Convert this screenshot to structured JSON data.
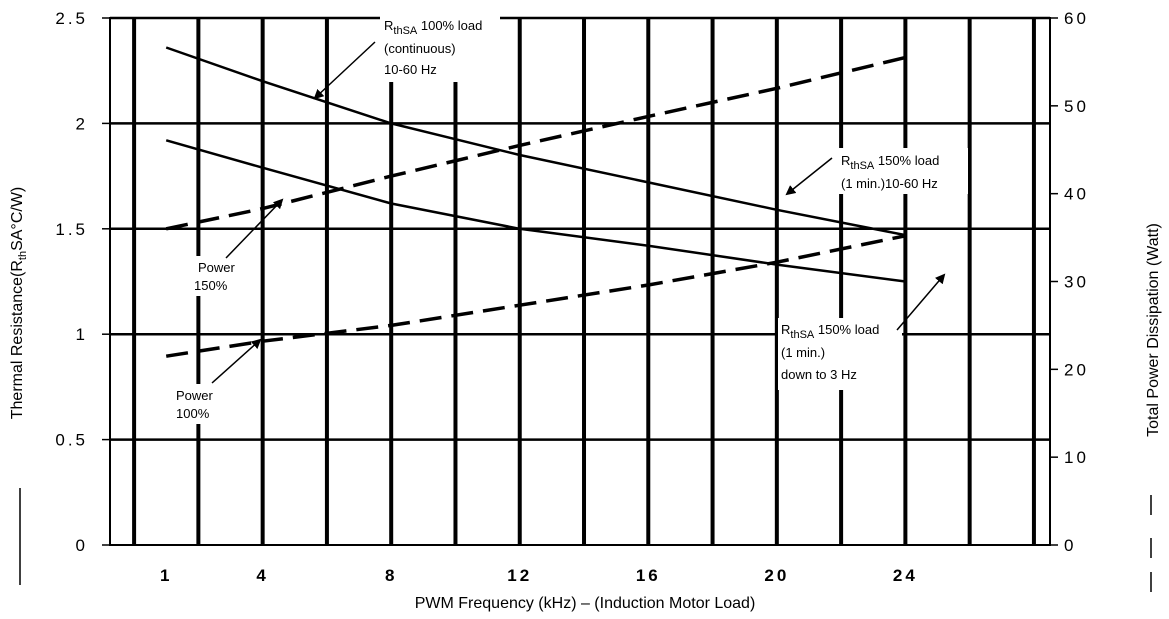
{
  "chart_data": {
    "type": "line",
    "xlabel": "PWM Frequency (kHz) – (Induction Motor Load)",
    "ylabel_left_main": "Thermal Resistance(R",
    "ylabel_left_sub": "th",
    "ylabel_left_tail": "SA°C/W)",
    "ylabel_right": "Total Power Dissipation (Watt)",
    "x_ticks": [
      "1",
      "4",
      "8",
      "12",
      "16",
      "20",
      "24"
    ],
    "y_left_ticks": [
      "0",
      "0.5",
      "1",
      "1.5",
      "2",
      "2.5"
    ],
    "y_right_ticks": [
      "0",
      "10",
      "20",
      "30",
      "40",
      "50",
      "60"
    ],
    "y_left_range": [
      0,
      2.5
    ],
    "y_right_range": [
      0,
      60
    ],
    "grid": true,
    "series": [
      {
        "style": "solid",
        "axis": "left",
        "x": [
          1,
          4,
          8,
          12,
          16,
          20,
          24
        ],
        "y": [
          2.36,
          2.2,
          2.0,
          1.85,
          1.72,
          1.59,
          1.47
        ]
      },
      {
        "style": "solid",
        "axis": "left",
        "x": [
          1,
          4,
          8,
          12,
          16,
          20,
          24
        ],
        "y": [
          1.92,
          1.79,
          1.62,
          1.5,
          1.42,
          1.33,
          1.25
        ]
      },
      {
        "style": "dashed",
        "axis": "right",
        "x": [
          1,
          4,
          8,
          12,
          16,
          20,
          24
        ],
        "y": [
          36,
          38.3,
          42,
          45.5,
          48.8,
          52,
          55.5
        ]
      },
      {
        "style": "dashed",
        "axis": "right",
        "x": [
          1,
          4,
          8,
          12,
          16,
          20,
          24
        ],
        "y": [
          21.5,
          23.2,
          25,
          27.3,
          29.6,
          32.2,
          35.2
        ]
      }
    ],
    "annotations": [
      {
        "lines": [
          {
            "r": "R",
            "sub": "thSA",
            "rest": " 100% load"
          },
          {
            "text": "(continuous)"
          },
          {
            "text": "10-60 Hz"
          }
        ]
      },
      {
        "lines": [
          {
            "r": "R",
            "sub": "thSA",
            "rest": " 150% load"
          },
          {
            "text": "(1 min.)10-60 Hz"
          }
        ]
      },
      {
        "lines": [
          {
            "r": "R",
            "sub": "thSA",
            "rest": " 150% load"
          },
          {
            "text": "(1 min.)"
          },
          {
            "text": "down to 3 Hz"
          }
        ]
      },
      {
        "lines": [
          {
            "text": "Power"
          },
          {
            "text": "150%"
          }
        ]
      },
      {
        "lines": [
          {
            "text": "Power"
          },
          {
            "text": "100%"
          }
        ]
      }
    ],
    "legend_marks": {
      "left": "solid",
      "right": "dashed"
    }
  }
}
